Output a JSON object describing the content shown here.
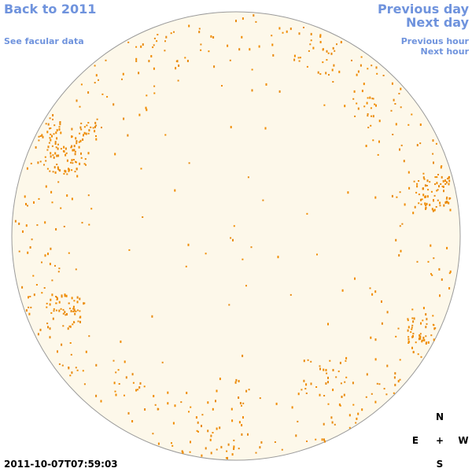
{
  "links": {
    "back": "Back to 2011",
    "facular": "See facular data",
    "previous_day": "Previous day",
    "next_day": "Next day",
    "previous_hour": "Previous hour",
    "next_hour": "Next hour"
  },
  "compass": {
    "north": "N",
    "east": "E",
    "center": "+",
    "west": "W",
    "south": "S"
  },
  "timestamp": "2011-10-07T07:59:03"
}
